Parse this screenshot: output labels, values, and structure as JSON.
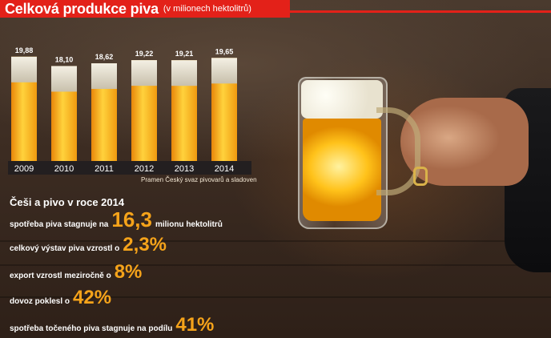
{
  "header": {
    "title_bold": "Celková produkce piva",
    "title_unit": "(v milionech hektolitrů)"
  },
  "colors": {
    "accent_red": "#e32119",
    "beer_orange": "#f5a31a",
    "axis_bar": "#231f20"
  },
  "chart_data": {
    "type": "bar",
    "title": "Celková produkce piva",
    "subtitle": "(v milionech hektolitrů)",
    "categories": [
      "2009",
      "2010",
      "2011",
      "2012",
      "2013",
      "2014"
    ],
    "values": [
      19.88,
      18.1,
      18.62,
      19.22,
      19.21,
      19.65
    ],
    "value_labels": [
      "19,88",
      "18,10",
      "18,62",
      "19,22",
      "19,21",
      "19,65"
    ],
    "xlabel": "",
    "ylabel": "",
    "grid": false
  },
  "source_note": "Pramen Český svaz pivovarů a sladoven",
  "facts": {
    "heading": "Češi a pivo v roce 2014",
    "items": [
      {
        "prefix": "spotřeba piva stagnuje na",
        "value": "16,3",
        "suffix": "milionu hektolitrů"
      },
      {
        "prefix": "celkový výstav piva vzrostl o",
        "value": "2,3%",
        "suffix": ""
      },
      {
        "prefix": "export vzrostl meziročně o",
        "value": "8%",
        "suffix": ""
      },
      {
        "prefix": "dovoz poklesl o",
        "value": "42%",
        "suffix": ""
      },
      {
        "prefix": "spotřeba točeného piva stagnuje na podílu",
        "value": "41%",
        "suffix": ""
      }
    ]
  }
}
